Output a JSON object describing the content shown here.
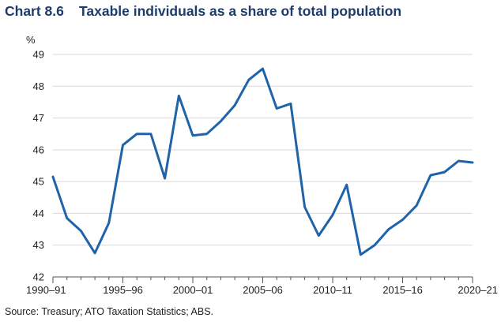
{
  "header": {
    "chart_number": "Chart 8.6",
    "title": "Taxable individuals as a share of total population"
  },
  "footer": {
    "source": "Source: Treasury; ATO Taxation Statistics; ABS."
  },
  "colors": {
    "line": "#1f63a8",
    "grid": "#d9d9d9",
    "axis": "#555555",
    "title": "#1d3c6b"
  },
  "chart_data": {
    "type": "line",
    "title": "Taxable individuals as a share of total population",
    "ylabel": "%",
    "ylim": [
      42,
      49
    ],
    "yticks": [
      42,
      43,
      44,
      45,
      46,
      47,
      48,
      49
    ],
    "grid": true,
    "x_tick_labels": [
      "1990–91",
      "1995–96",
      "2000–01",
      "2005–06",
      "2010–11",
      "2015–16",
      "2020–21"
    ],
    "x_tick_positions": [
      1990,
      1995,
      2000,
      2005,
      2010,
      2015,
      2020
    ],
    "xlim": [
      1990,
      2020
    ],
    "series": [
      {
        "x": [
          1990,
          1991,
          1992,
          1993,
          1994,
          1995,
          1996,
          1997,
          1998,
          1999,
          2000,
          2001,
          2002,
          2003,
          2004,
          2005,
          2006,
          2007,
          2008,
          2009,
          2010,
          2011,
          2012,
          2013,
          2014,
          2015,
          2016,
          2017,
          2018,
          2019,
          2020
        ],
        "values": [
          45.15,
          43.85,
          43.45,
          42.75,
          43.7,
          46.15,
          46.5,
          46.5,
          45.1,
          47.7,
          46.45,
          46.5,
          46.9,
          47.4,
          48.2,
          48.55,
          47.3,
          47.45,
          44.2,
          43.3,
          43.95,
          44.9,
          42.7,
          43.0,
          43.5,
          43.8,
          44.25,
          45.2,
          45.3,
          45.65,
          45.6
        ]
      }
    ]
  }
}
